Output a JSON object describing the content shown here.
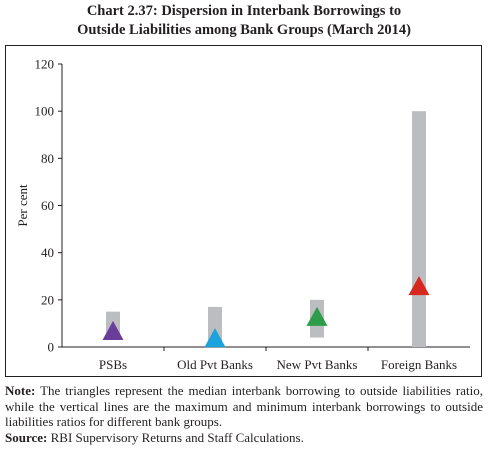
{
  "title_line1": "Chart 2.37: Dispersion in Interbank Borrowings to",
  "title_line2": "Outside Liabilities among Bank Groups (March 2014)",
  "note_label": "Note:",
  "note_text": " The triangles represent the median interbank borrowing to outside liabilities ratio, while the vertical lines are the maximum and minimum interbank borrowings to outside liabilities ratios for different bank groups.",
  "source_label": "Source:",
  "source_text": " RBI Supervisory Returns and Staff Calculations.",
  "chart_data": {
    "type": "range-median",
    "ylabel": "Per cent",
    "xlabel": "",
    "ylim": [
      0,
      120
    ],
    "yticks": [
      0,
      20,
      40,
      60,
      80,
      100,
      120
    ],
    "grid": false,
    "categories": [
      "PSBs",
      "Old Pvt Banks",
      "New Pvt Banks",
      "Foreign Banks"
    ],
    "series": [
      {
        "role": "range",
        "color": "#bcbdc0",
        "min": [
          3,
          0,
          4,
          0
        ],
        "max": [
          15,
          17,
          20,
          100
        ]
      },
      {
        "role": "median",
        "marker": "triangle",
        "values": [
          7,
          4,
          13,
          26
        ],
        "colors": [
          "#6a3d9a",
          "#1aa3dc",
          "#2e9d4a",
          "#d6281e"
        ]
      }
    ]
  }
}
